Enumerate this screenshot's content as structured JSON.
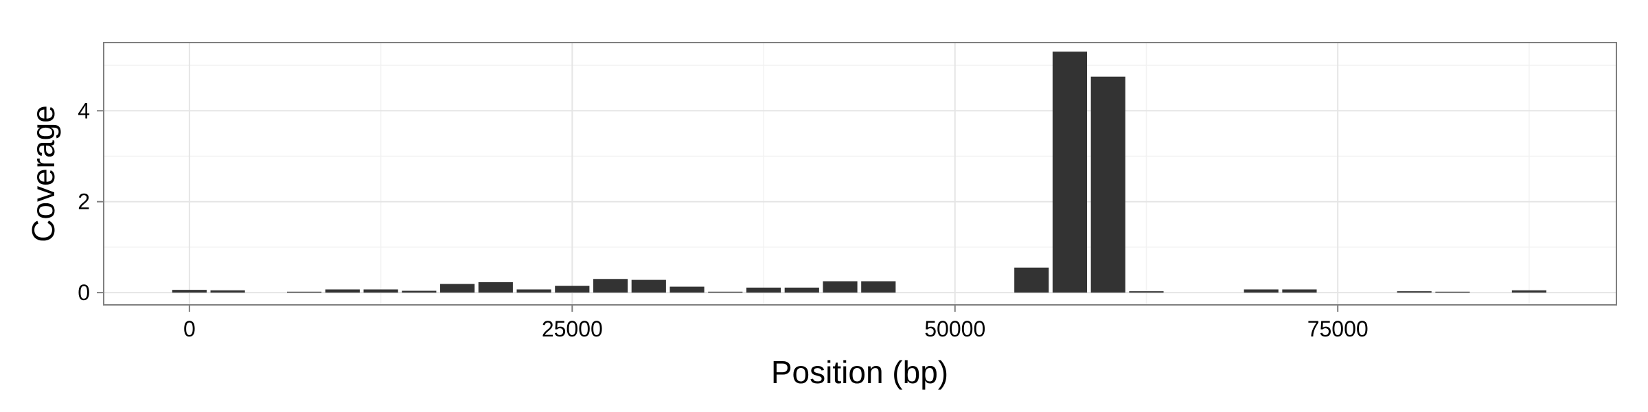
{
  "chart_data": {
    "type": "bar",
    "xlabel": "Position (bp)",
    "ylabel": "Coverage",
    "xlim": [
      -5600,
      93200
    ],
    "ylim": [
      -0.27,
      5.5
    ],
    "x_ticks": [
      0,
      25000,
      50000,
      75000
    ],
    "y_ticks": [
      0,
      2,
      4
    ],
    "bin_width": 2500,
    "grid": true,
    "bar_color": "#333333",
    "x": [
      0,
      2500,
      5000,
      7500,
      10000,
      12500,
      15000,
      17500,
      20000,
      22500,
      25000,
      27500,
      30000,
      32500,
      35000,
      37500,
      40000,
      42500,
      45000,
      47500,
      50000,
      52500,
      55000,
      57500,
      60000,
      62500,
      65000,
      67500,
      70000,
      72500,
      75000,
      77500,
      80000,
      82500,
      85000,
      87500
    ],
    "values": [
      0.06,
      0.05,
      0,
      0.02,
      0.07,
      0.07,
      0.04,
      0.19,
      0.23,
      0.07,
      0.15,
      0.3,
      0.28,
      0.13,
      0.02,
      0.11,
      0.11,
      0.25,
      0.25,
      0,
      0,
      0,
      0.55,
      5.3,
      4.75,
      0.03,
      0,
      0,
      0.07,
      0.07,
      0,
      0,
      0.03,
      0.02,
      0,
      0.05
    ]
  }
}
